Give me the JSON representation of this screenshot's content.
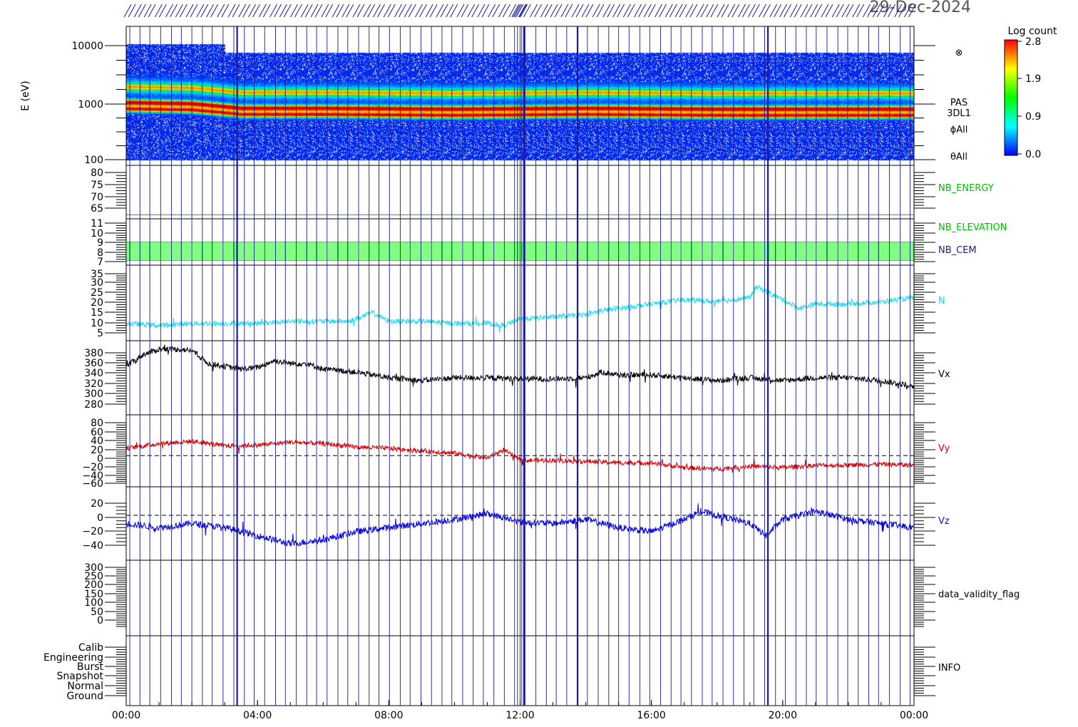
{
  "header": {
    "date": "29-Dec-2024"
  },
  "x_axis": {
    "range_hours": [
      0,
      24
    ],
    "ticks": [
      {
        "h": 0,
        "label": "00:00"
      },
      {
        "h": 4,
        "label": "04:00"
      },
      {
        "h": 8,
        "label": "08:00"
      },
      {
        "h": 12,
        "label": "12:00"
      },
      {
        "h": 16,
        "label": "16:00"
      },
      {
        "h": 20,
        "label": "20:00"
      },
      {
        "h": 24,
        "label": "00:00"
      }
    ]
  },
  "colorbar": {
    "title": "Log count",
    "ticks": [
      "2.8",
      "1.9",
      "0.9",
      "0.0"
    ],
    "colors": [
      "#ff0000",
      "#ffff00",
      "#00ff00",
      "#00ffff",
      "#0000ff"
    ]
  },
  "markers": {
    "hours": [
      0.11,
      0.42,
      0.72,
      1.05,
      1.38,
      1.68,
      2.0,
      2.32,
      2.62,
      2.95,
      3.28,
      3.6,
      3.9,
      4.22,
      4.55,
      4.85,
      5.18,
      5.5,
      5.8,
      6.12,
      6.45,
      6.75,
      7.08,
      7.4,
      7.7,
      8.02,
      8.35,
      8.65,
      8.98,
      9.3,
      9.62,
      9.92,
      10.25,
      10.57,
      10.88,
      11.2,
      11.52,
      11.83,
      11.92,
      12.0,
      12.05,
      12.15,
      12.48,
      12.8,
      13.1,
      13.42,
      13.75,
      14.05,
      14.38,
      14.7,
      15.0,
      15.32,
      15.65,
      15.95,
      16.28,
      16.6,
      16.9,
      17.22,
      17.55,
      17.85,
      18.18,
      18.5,
      18.82,
      19.12,
      19.45,
      19.78,
      20.08,
      20.4,
      20.72,
      21.02,
      21.35,
      21.68,
      21.98,
      22.3,
      22.62,
      22.92,
      23.25,
      23.58,
      23.88
    ],
    "thick_hours": [
      3.38,
      12.12,
      13.75,
      19.55
    ],
    "color": "#1a1a9e"
  },
  "panels": [
    {
      "id": "spectrogram",
      "ylabel": "E (eV)",
      "ticks": [
        "10000",
        "1000",
        "100"
      ],
      "labels": [
        "⊗",
        "PAS",
        "3DL1",
        "ϕAll",
        "θAll"
      ],
      "chart_data": {
        "type": "heatmap",
        "x_range_hours": [
          0,
          24
        ],
        "y_scale": "log",
        "ylim": [
          100,
          13000
        ],
        "ridges": [
          {
            "energy_eV": 1300,
            "level": 1.1
          },
          {
            "energy_eV": 750,
            "level": 2.7
          },
          {
            "energy_eV": 600,
            "level": 2.4
          }
        ],
        "peak_energy_eV_by_hour": [
          [
            0,
            780
          ],
          [
            2,
            750
          ],
          [
            3.5,
            640
          ],
          [
            6,
            640
          ],
          [
            10,
            620
          ],
          [
            14,
            640
          ],
          [
            18,
            620
          ],
          [
            24,
            620
          ]
        ]
      }
    },
    {
      "id": "nb_energy",
      "ticks": [
        "80",
        "75",
        "70",
        "65"
      ],
      "ylim": [
        62,
        82
      ],
      "labels": [
        {
          "text": "NB_ENERGY",
          "color": "#00c000"
        }
      ],
      "chart_data": {
        "type": "line",
        "series": [
          {
            "name": "NB_ENERGY",
            "color": "#00c000",
            "constant": 63.5
          }
        ]
      }
    },
    {
      "id": "nb_elev",
      "ticks": [
        "11",
        "10",
        "9",
        "8",
        "7"
      ],
      "ylim": [
        6.5,
        11.5
      ],
      "labels": [
        {
          "text": "NB_ELEVATION",
          "color": "#00c000"
        },
        {
          "text": "NB_CEM",
          "color": "#1a1a9e"
        }
      ],
      "chart_data": {
        "type": "line",
        "series": [
          {
            "name": "NB_ELEVATION",
            "color": "#00ff00",
            "oscillates_between": [
              7,
              9
            ]
          }
        ]
      }
    },
    {
      "id": "density",
      "ticks": [
        "35",
        "30",
        "25",
        "20",
        "15",
        "10",
        "5"
      ],
      "ylim": [
        0,
        35
      ],
      "labels": [
        {
          "text": "N",
          "color": "#00e0f0"
        }
      ],
      "chart_data": {
        "type": "line",
        "series": [
          {
            "name": "N",
            "color": "#22ddee",
            "x": [
              0,
              1,
              2,
              3,
              4,
              5,
              6,
              6.8,
              7.5,
              8,
              9,
              10,
              11,
              11.5,
              12,
              13,
              14,
              14.5,
              15,
              16,
              17,
              18,
              19,
              19.2,
              20,
              20.5,
              21,
              22,
              23,
              24
            ],
            "y": [
              8,
              7,
              8,
              8,
              8,
              9,
              9,
              9,
              13,
              9,
              9,
              8,
              8,
              7,
              10,
              11,
              12,
              14,
              15,
              17,
              19,
              18,
              20,
              25,
              19,
              15,
              17,
              17,
              18,
              20
            ],
            "noise": 1.2
          }
        ]
      }
    },
    {
      "id": "vx",
      "ticks": [
        "380",
        "360",
        "340",
        "320",
        "300",
        "280"
      ],
      "ylim": [
        265,
        395
      ],
      "labels": [
        {
          "text": "Vx",
          "color": "#000000"
        }
      ],
      "chart_data": {
        "type": "line",
        "series": [
          {
            "name": "Vx",
            "color": "#000000",
            "x": [
              0,
              0.5,
              1,
              1.5,
              2,
              2.5,
              3,
              3.5,
              4,
              4.5,
              5,
              5.5,
              6,
              7,
              8,
              9,
              10,
              11,
              12,
              13,
              14,
              14.5,
              15,
              16,
              17,
              18,
              19,
              20,
              21,
              22,
              23,
              24
            ],
            "y": [
              350,
              370,
              380,
              380,
              378,
              355,
              350,
              345,
              348,
              360,
              355,
              355,
              345,
              340,
              330,
              325,
              330,
              330,
              328,
              328,
              330,
              340,
              335,
              335,
              330,
              325,
              330,
              325,
              330,
              330,
              325,
              315
            ],
            "noise": 5
          }
        ]
      }
    },
    {
      "id": "vy",
      "ticks": [
        "80",
        "60",
        "40",
        "20",
        "0",
        "−20",
        "−40",
        "−60"
      ],
      "ylim": [
        -65,
        85
      ],
      "zero_line": 0,
      "labels": [
        {
          "text": "Vy",
          "color": "#e00000"
        }
      ],
      "chart_data": {
        "type": "line",
        "series": [
          {
            "name": "Vy",
            "color": "#e00000",
            "x": [
              0,
              1,
              2,
              3,
              4,
              5,
              6,
              7,
              8,
              9,
              10,
              11,
              11.5,
              12,
              13,
              14,
              15,
              16,
              17,
              18,
              19,
              20,
              21,
              22,
              23,
              24
            ],
            "y": [
              15,
              25,
              30,
              20,
              22,
              28,
              25,
              18,
              15,
              10,
              5,
              -5,
              12,
              -10,
              -10,
              -12,
              -15,
              -15,
              -25,
              -28,
              -22,
              -25,
              -20,
              -20,
              -18,
              -20
            ],
            "noise": 5
          }
        ]
      }
    },
    {
      "id": "vz",
      "ticks": [
        "20",
        "0",
        "−20",
        "−40"
      ],
      "ylim": [
        -55,
        35
      ],
      "zero_line": 0,
      "labels": [
        {
          "text": "Vz",
          "color": "#1a1a9e"
        }
      ],
      "chart_data": {
        "type": "line",
        "series": [
          {
            "name": "Vz",
            "color": "#0000e0",
            "x": [
              0,
              1,
              2,
              3,
              3.5,
              4,
              5,
              6,
              7,
              8,
              9,
              10,
              11,
              12,
              13,
              14,
              15,
              16,
              17,
              17.5,
              18,
              19,
              19.5,
              20,
              21,
              22,
              23,
              24
            ],
            "y": [
              -10,
              -15,
              -10,
              -15,
              -20,
              -25,
              -35,
              -30,
              -20,
              -15,
              -10,
              -5,
              2,
              -8,
              -10,
              -5,
              -15,
              -20,
              -5,
              5,
              0,
              -10,
              -25,
              -5,
              5,
              -5,
              -10,
              -15
            ],
            "noise": 4
          }
        ]
      }
    },
    {
      "id": "validity",
      "ticks": [
        "300",
        "250",
        "200",
        "150",
        "100",
        "50",
        "0"
      ],
      "ylim": [
        -20,
        310
      ],
      "labels": [
        {
          "text": "data_validity_flag",
          "color": "#000000"
        }
      ],
      "chart_data": {
        "type": "line",
        "series": []
      }
    },
    {
      "id": "info",
      "ticks": [
        "Calib",
        "Engineering",
        "Burst",
        "Snapshot",
        "Normal",
        "Ground"
      ],
      "labels": [
        {
          "text": "INFO",
          "color": "#000000"
        }
      ],
      "chart_data": {
        "type": "line",
        "series": []
      }
    }
  ]
}
